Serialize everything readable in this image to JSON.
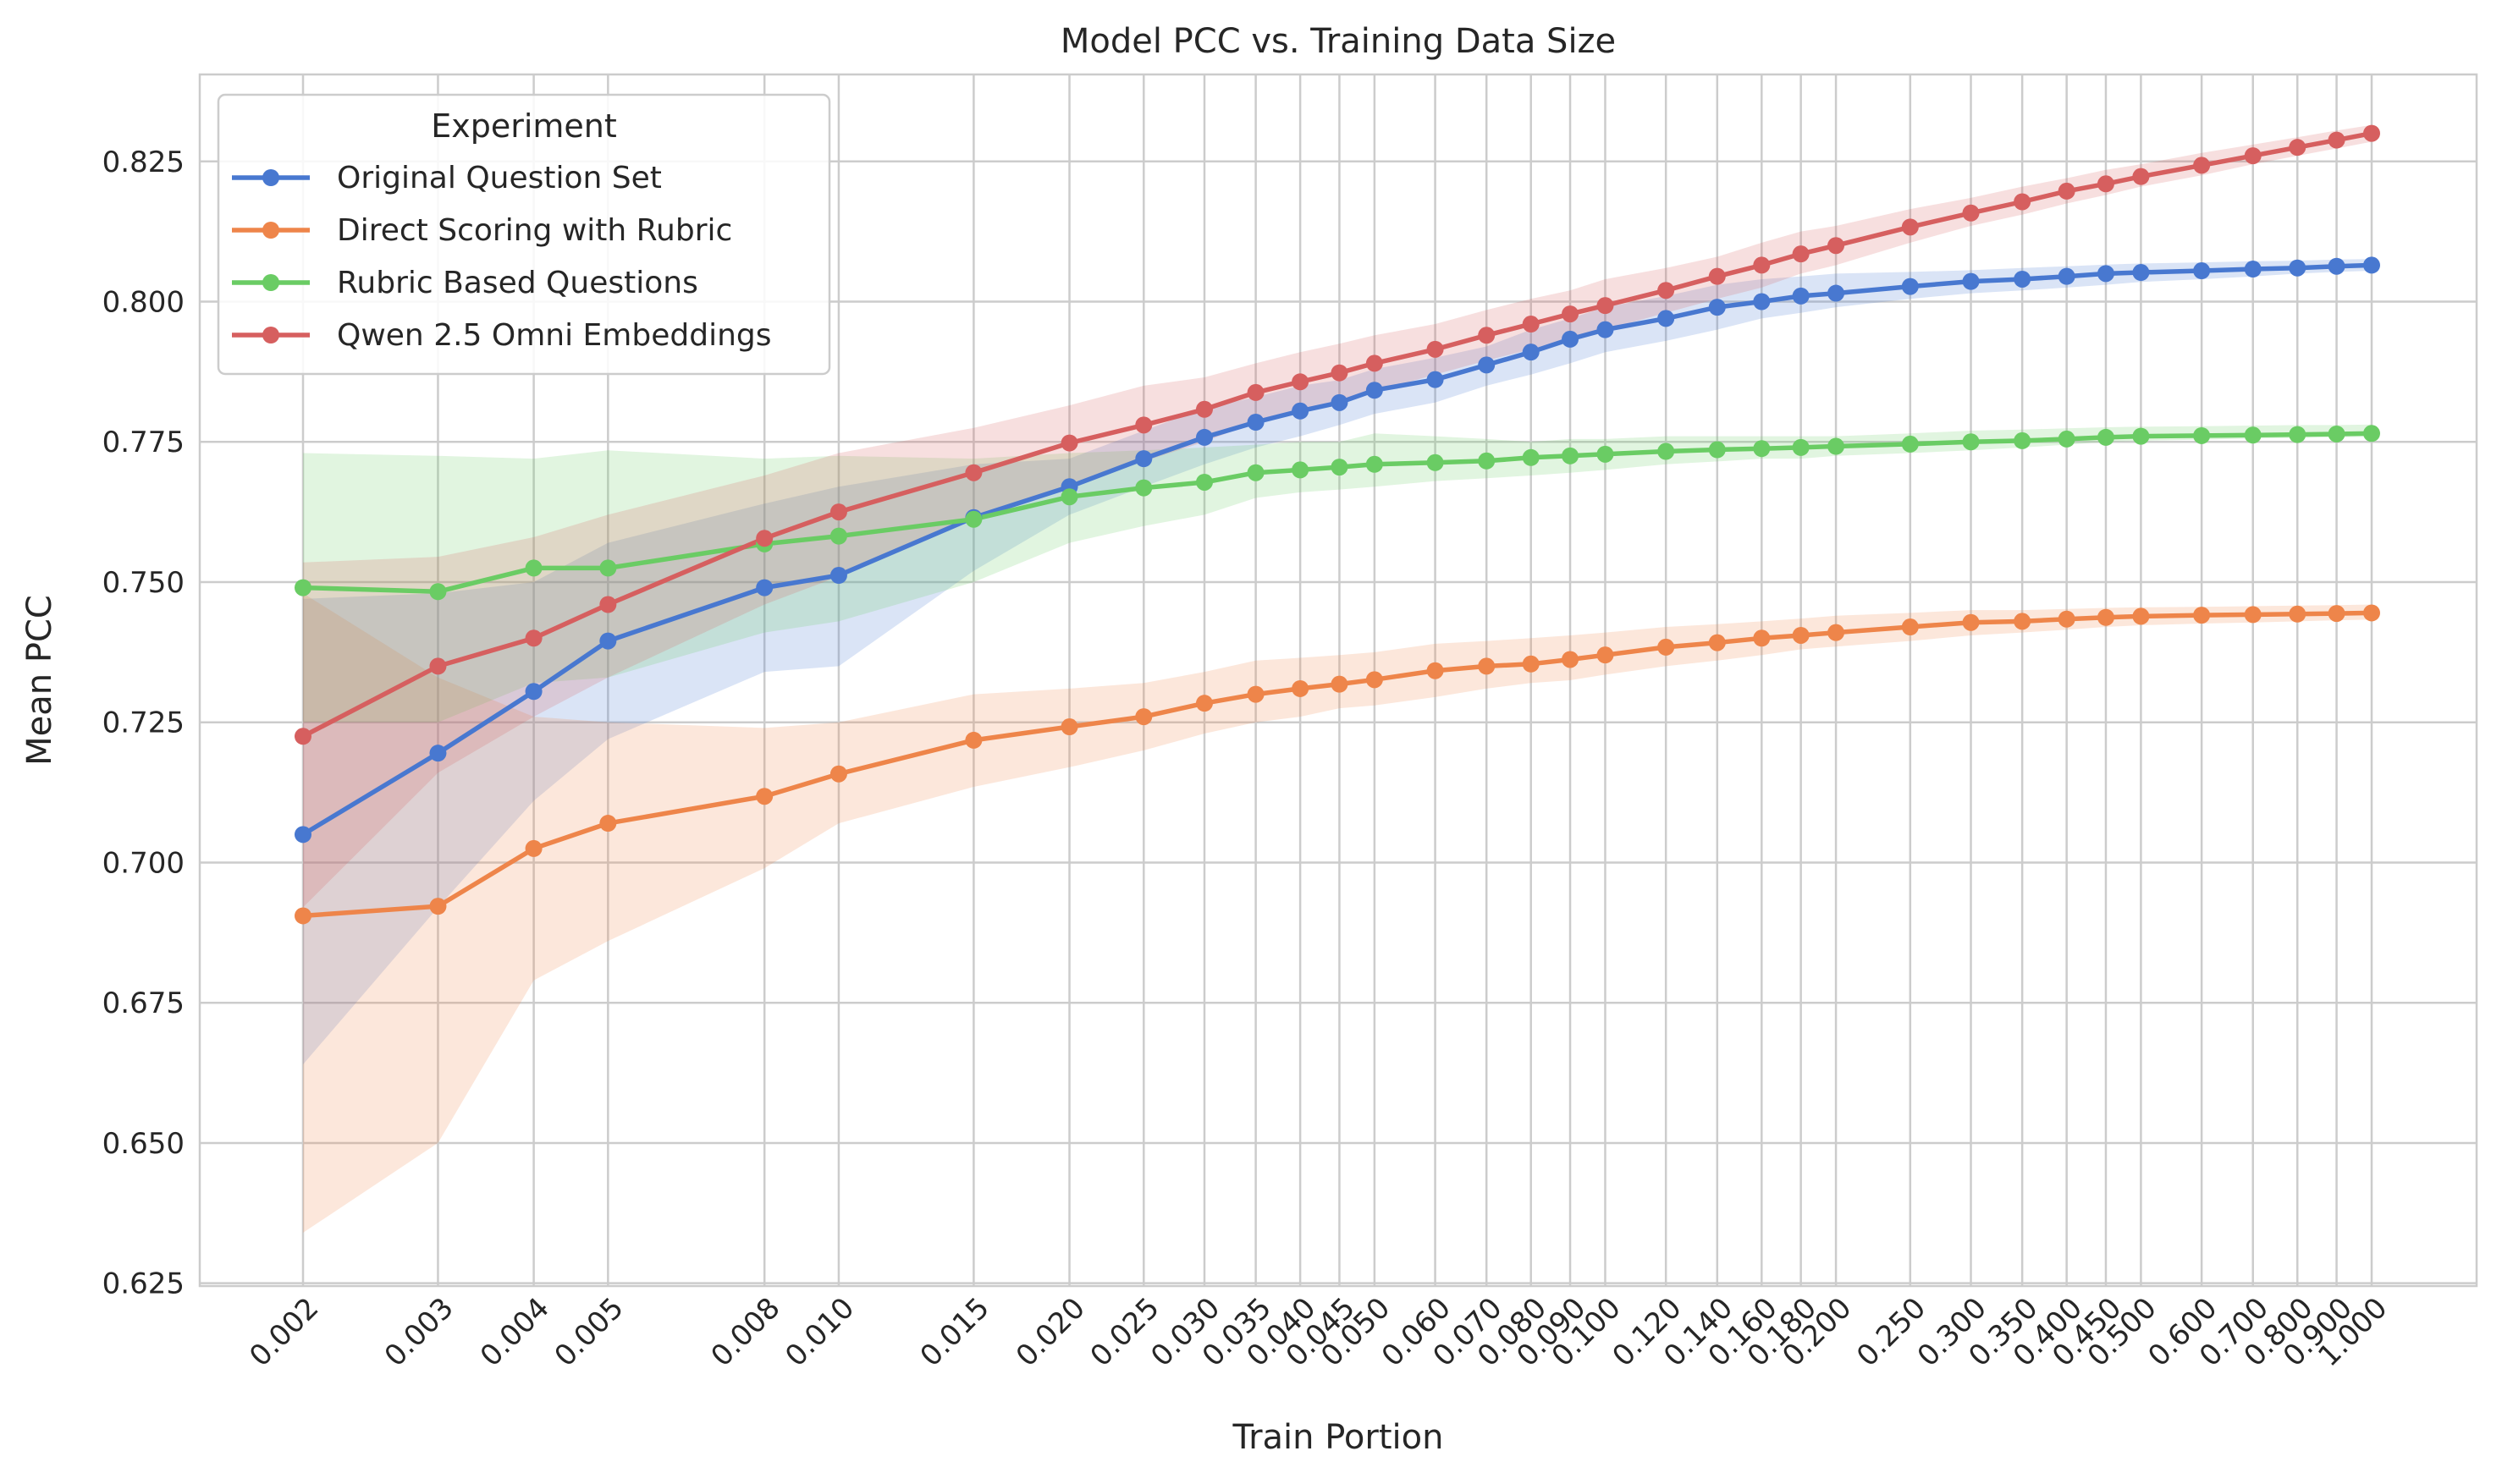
{
  "chart_data": {
    "type": "line",
    "title": "Model PCC vs. Training Data Size",
    "xlabel": "Train Portion",
    "ylabel": "Mean PCC",
    "ylim": [
      0.6245,
      0.8405
    ],
    "yticks": [
      "0.625",
      "0.650",
      "0.675",
      "0.700",
      "0.725",
      "0.750",
      "0.775",
      "0.800",
      "0.825"
    ],
    "x_scale": "log",
    "x": [
      0.002,
      0.003,
      0.004,
      0.005,
      0.008,
      0.01,
      0.015,
      0.02,
      0.025,
      0.03,
      0.035,
      0.04,
      0.045,
      0.05,
      0.06,
      0.07,
      0.08,
      0.09,
      0.1,
      0.12,
      0.14,
      0.16,
      0.18,
      0.2,
      0.25,
      0.3,
      0.35,
      0.4,
      0.45,
      0.5,
      0.6,
      0.7,
      0.8,
      0.9,
      1.0
    ],
    "xtick_labels": [
      "0.002",
      "0.003",
      "0.004",
      "0.005",
      "0.008",
      "0.010",
      "0.015",
      "0.020",
      "0.025",
      "0.030",
      "0.035",
      "0.040",
      "0.045",
      "0.050",
      "0.060",
      "0.070",
      "0.080",
      "0.090",
      "0.100",
      "0.120",
      "0.140",
      "0.160",
      "0.180",
      "0.200",
      "0.250",
      "0.300",
      "0.350",
      "0.400",
      "0.450",
      "0.500",
      "0.600",
      "0.700",
      "0.800",
      "0.900",
      "1.000"
    ],
    "grid": true,
    "legend": {
      "title": "Experiment",
      "placement": "top-left"
    },
    "series": [
      {
        "name": "Original Question Set",
        "color": "#4878d0",
        "values": [
          0.705,
          0.7195,
          0.7305,
          0.7395,
          0.749,
          0.7512,
          0.7615,
          0.767,
          0.772,
          0.7758,
          0.7785,
          0.7805,
          0.782,
          0.7842,
          0.7861,
          0.7887,
          0.791,
          0.7933,
          0.795,
          0.797,
          0.799,
          0.8,
          0.801,
          0.8015,
          0.8027,
          0.8036,
          0.804,
          0.8045,
          0.805,
          0.8052,
          0.8055,
          0.8058,
          0.806,
          0.8063,
          0.8065
        ],
        "lower": [
          0.664,
          0.692,
          0.711,
          0.722,
          0.734,
          0.735,
          0.752,
          0.762,
          0.767,
          0.771,
          0.774,
          0.776,
          0.778,
          0.78,
          0.782,
          0.785,
          0.787,
          0.789,
          0.791,
          0.793,
          0.795,
          0.797,
          0.798,
          0.799,
          0.8005,
          0.8015,
          0.802,
          0.8025,
          0.803,
          0.8035,
          0.804,
          0.8045,
          0.805,
          0.8053,
          0.8055
        ],
        "upper": [
          0.747,
          0.748,
          0.75,
          0.757,
          0.764,
          0.767,
          0.771,
          0.772,
          0.777,
          0.781,
          0.783,
          0.785,
          0.786,
          0.788,
          0.79,
          0.792,
          0.795,
          0.797,
          0.799,
          0.801,
          0.803,
          0.804,
          0.8045,
          0.805,
          0.8053,
          0.8056,
          0.806,
          0.8063,
          0.8066,
          0.8068,
          0.807,
          0.8072,
          0.8073,
          0.8075,
          0.8076
        ]
      },
      {
        "name": "Direct Scoring with Rubric",
        "color": "#ee854a",
        "values": [
          0.6905,
          0.6922,
          0.7025,
          0.707,
          0.7118,
          0.7158,
          0.7218,
          0.7242,
          0.726,
          0.7284,
          0.73,
          0.731,
          0.7318,
          0.7326,
          0.7342,
          0.735,
          0.7354,
          0.7362,
          0.737,
          0.7384,
          0.7392,
          0.74,
          0.7405,
          0.741,
          0.742,
          0.7428,
          0.743,
          0.7434,
          0.7437,
          0.7439,
          0.7441,
          0.7442,
          0.7443,
          0.7444,
          0.7445
        ],
        "lower": [
          0.634,
          0.65,
          0.679,
          0.686,
          0.699,
          0.707,
          0.7135,
          0.717,
          0.72,
          0.723,
          0.725,
          0.726,
          0.7275,
          0.728,
          0.7295,
          0.731,
          0.732,
          0.7325,
          0.7335,
          0.735,
          0.736,
          0.737,
          0.738,
          0.7385,
          0.7395,
          0.7405,
          0.741,
          0.7415,
          0.742,
          0.7423,
          0.7426,
          0.7428,
          0.743,
          0.7432,
          0.7433
        ],
        "upper": [
          0.748,
          0.733,
          0.726,
          0.725,
          0.724,
          0.725,
          0.73,
          0.731,
          0.732,
          0.734,
          0.736,
          0.7365,
          0.737,
          0.7375,
          0.739,
          0.7395,
          0.74,
          0.7405,
          0.741,
          0.742,
          0.7425,
          0.743,
          0.7435,
          0.744,
          0.7445,
          0.745,
          0.745,
          0.7452,
          0.7454,
          0.7455,
          0.7456,
          0.7457,
          0.7458,
          0.7459,
          0.746
        ]
      },
      {
        "name": "Rubric Based Questions",
        "color": "#6acc64",
        "values": [
          0.749,
          0.7483,
          0.7525,
          0.7525,
          0.7568,
          0.7582,
          0.7612,
          0.7652,
          0.7668,
          0.7678,
          0.7695,
          0.77,
          0.7705,
          0.771,
          0.7713,
          0.7716,
          0.7722,
          0.7725,
          0.7728,
          0.7733,
          0.7736,
          0.7738,
          0.774,
          0.7742,
          0.7746,
          0.775,
          0.7752,
          0.7755,
          0.7758,
          0.776,
          0.7761,
          0.7762,
          0.7763,
          0.7764,
          0.7765
        ],
        "lower": [
          0.725,
          0.725,
          0.732,
          0.733,
          0.741,
          0.743,
          0.75,
          0.757,
          0.76,
          0.762,
          0.765,
          0.766,
          0.7665,
          0.767,
          0.768,
          0.7685,
          0.769,
          0.7695,
          0.77,
          0.771,
          0.7715,
          0.772,
          0.772,
          0.7725,
          0.773,
          0.7735,
          0.774,
          0.7745,
          0.775,
          0.7752,
          0.7754,
          0.7756,
          0.7757,
          0.7758,
          0.7759
        ],
        "upper": [
          0.773,
          0.7725,
          0.772,
          0.7735,
          0.772,
          0.7725,
          0.772,
          0.773,
          0.7735,
          0.774,
          0.7745,
          0.775,
          0.775,
          0.7765,
          0.776,
          0.7755,
          0.775,
          0.7755,
          0.7755,
          0.776,
          0.776,
          0.776,
          0.776,
          0.776,
          0.7765,
          0.777,
          0.7772,
          0.7774,
          0.7776,
          0.7777,
          0.7778,
          0.7779,
          0.778,
          0.778,
          0.7781
        ]
      },
      {
        "name": "Qwen 2.5 Omni Embeddings",
        "color": "#d65f5f",
        "values": [
          0.7225,
          0.735,
          0.74,
          0.746,
          0.7578,
          0.7625,
          0.7695,
          0.7748,
          0.778,
          0.7808,
          0.7838,
          0.7857,
          0.7873,
          0.789,
          0.7915,
          0.794,
          0.796,
          0.7978,
          0.7993,
          0.802,
          0.8045,
          0.8065,
          0.8085,
          0.81,
          0.8133,
          0.8158,
          0.8178,
          0.8197,
          0.821,
          0.8223,
          0.8243,
          0.826,
          0.8275,
          0.8288,
          0.83
        ],
        "lower": [
          0.692,
          0.716,
          0.726,
          0.733,
          0.746,
          0.751,
          0.7615,
          0.7675,
          0.7715,
          0.775,
          0.7785,
          0.7805,
          0.7825,
          0.784,
          0.787,
          0.7895,
          0.7915,
          0.7935,
          0.795,
          0.798,
          0.8005,
          0.8025,
          0.805,
          0.8065,
          0.8105,
          0.8135,
          0.8155,
          0.8175,
          0.819,
          0.8205,
          0.8225,
          0.8245,
          0.826,
          0.8273,
          0.8285
        ],
        "upper": [
          0.7535,
          0.7545,
          0.758,
          0.762,
          0.769,
          0.773,
          0.7775,
          0.7815,
          0.785,
          0.7865,
          0.789,
          0.791,
          0.7925,
          0.794,
          0.796,
          0.7985,
          0.8005,
          0.802,
          0.804,
          0.806,
          0.808,
          0.8105,
          0.8125,
          0.8135,
          0.8165,
          0.8185,
          0.8205,
          0.822,
          0.8235,
          0.8245,
          0.8265,
          0.828,
          0.8293,
          0.8305,
          0.8315
        ]
      }
    ]
  }
}
